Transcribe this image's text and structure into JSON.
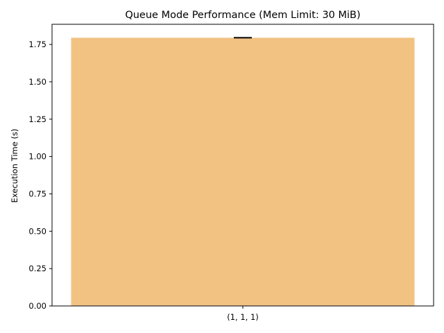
{
  "chart_data": {
    "type": "bar",
    "title": "Queue Mode Performance (Mem Limit: 30 MiB)",
    "xlabel": "",
    "ylabel": "Execution Time (s)",
    "categories": [
      "(1, 1, 1)"
    ],
    "values": [
      1.795
    ],
    "error": [
      0.0
    ],
    "ylim": [
      0,
      1.885
    ],
    "yticks": [
      0.0,
      0.25,
      0.5,
      0.75,
      1.0,
      1.25,
      1.5,
      1.75
    ],
    "ytick_labels": [
      "0.00",
      "0.25",
      "0.50",
      "0.75",
      "1.00",
      "1.25",
      "1.50",
      "1.75"
    ],
    "bar_color": "#f2c283",
    "grid": false,
    "legend": "none"
  }
}
